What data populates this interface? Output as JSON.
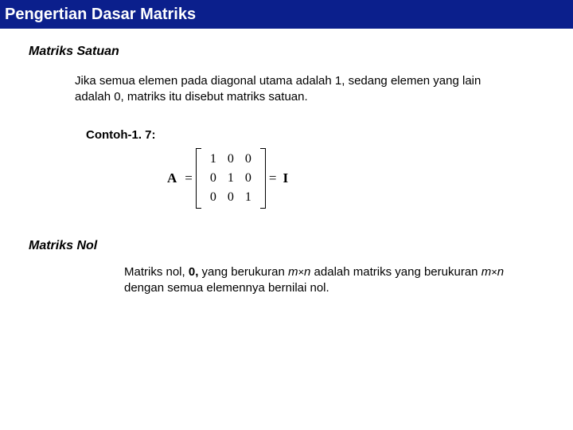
{
  "title": "Pengertian Dasar Matriks",
  "section1": {
    "heading": "Matriks Satuan",
    "body": "Jika semua elemen pada diagonal utama adalah 1, sedang elemen yang lain adalah 0, matriks itu disebut matriks satuan.",
    "example_label": "Contoh-1. 7:",
    "matrix": {
      "label": "A",
      "eq1": "=",
      "values": [
        [
          "1",
          "0",
          "0"
        ],
        [
          "0",
          "1",
          "0"
        ],
        [
          "0",
          "0",
          "1"
        ]
      ],
      "eq2": "=",
      "identity": "I"
    }
  },
  "section2": {
    "heading": "Matriks Nol",
    "body_parts": {
      "p1": "Matriks nol, ",
      "zero": "0,",
      "p2": " yang berukuran ",
      "m1": "m",
      "times1": "×",
      "n1": "n",
      "p3": " adalah matriks yang berukuran ",
      "m2": "m",
      "times2": "×",
      "n2": "n",
      "p4": " dengan semua elemennya bernilai nol."
    }
  },
  "colors": {
    "title_bg": "#0b1f8c",
    "title_fg": "#ffffff",
    "body_bg": "#ffffff",
    "text": "#000000"
  }
}
